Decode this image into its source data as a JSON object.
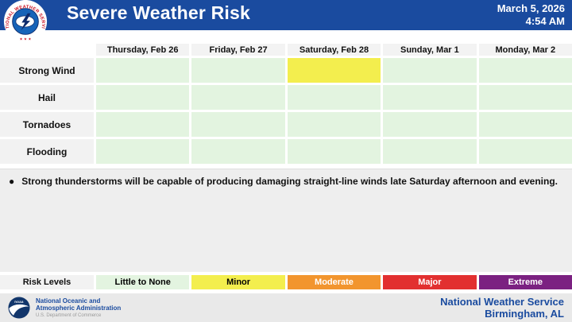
{
  "header": {
    "title": "Severe Weather Risk",
    "date_line": "March 5, 2026",
    "time_line": "4:54 AM",
    "nws_logo_text": "NATIONAL WEATHER SERVICE"
  },
  "chart_data": {
    "type": "heatmap",
    "title": "Severe Weather Risk",
    "columns": [
      "Thursday, Feb 26",
      "Friday, Feb 27",
      "Saturday, Feb 28",
      "Sunday, Mar 1",
      "Monday, Mar 2"
    ],
    "rows": [
      "Strong Wind",
      "Hail",
      "Tornadoes",
      "Flooding"
    ],
    "values": [
      [
        "little_to_none",
        "little_to_none",
        "minor",
        "little_to_none",
        "little_to_none"
      ],
      [
        "little_to_none",
        "little_to_none",
        "little_to_none",
        "little_to_none",
        "little_to_none"
      ],
      [
        "little_to_none",
        "little_to_none",
        "little_to_none",
        "little_to_none",
        "little_to_none"
      ],
      [
        "little_to_none",
        "little_to_none",
        "little_to_none",
        "little_to_none",
        "little_to_none"
      ]
    ],
    "legend_title": "Risk Levels",
    "levels": [
      {
        "id": "little_to_none",
        "label": "Little to None",
        "color": "#e3f4e0",
        "text_color": "#000000"
      },
      {
        "id": "minor",
        "label": "Minor",
        "color": "#f3ee4e",
        "text_color": "#000000"
      },
      {
        "id": "moderate",
        "label": "Moderate",
        "color": "#f2952e",
        "text_color": "#ffffff"
      },
      {
        "id": "major",
        "label": "Major",
        "color": "#e23030",
        "text_color": "#ffffff"
      },
      {
        "id": "extreme",
        "label": "Extreme",
        "color": "#7b2181",
        "text_color": "#ffffff"
      }
    ],
    "legend_position": "bottom"
  },
  "notes": {
    "bullets": [
      "Strong thunderstorms will be capable of producing damaging straight-line winds late Saturday afternoon and evening."
    ]
  },
  "footer": {
    "noaa_name_line1": "National Oceanic and",
    "noaa_name_line2": "Atmospheric Administration",
    "noaa_dept": "U.S. Department of Commerce",
    "noaa_logo_text": "noaa",
    "office_line1": "National Weather Service",
    "office_line2": "Birmingham, AL"
  },
  "colors": {
    "header_bg": "#1a4b9f",
    "nws_blue": "#1a4b9f",
    "label_cell_bg": "#f2f2f2",
    "notes_bg": "#eeeeee",
    "footer_bg": "#e9e9e9",
    "logo_red": "#cc1122",
    "logo_navy": "#12366b"
  }
}
